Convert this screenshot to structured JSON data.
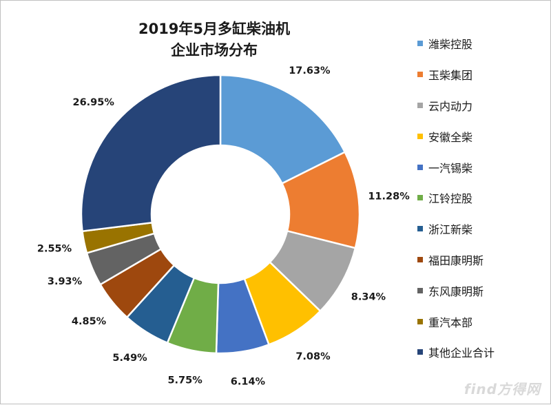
{
  "chart_data": {
    "type": "pie",
    "title": [
      "2019年5月多缸柴油机",
      "企业市场分布"
    ],
    "legend_position": "right",
    "slices": [
      {
        "name": "潍柴控股",
        "value": 17.63,
        "label": "17.63%",
        "color": "#5b9bd5"
      },
      {
        "name": "玉柴集团",
        "value": 11.28,
        "label": "11.28%",
        "color": "#ed7d31"
      },
      {
        "name": "云内动力",
        "value": 8.34,
        "label": "8.34%",
        "color": "#a5a5a5"
      },
      {
        "name": "安徽全柴",
        "value": 7.08,
        "label": "7.08%",
        "color": "#ffc000"
      },
      {
        "name": "一汽锡柴",
        "value": 6.14,
        "label": "6.14%",
        "color": "#4472c4"
      },
      {
        "name": "江铃控股",
        "value": 5.75,
        "label": "5.75%",
        "color": "#70ad47"
      },
      {
        "name": "浙江新柴",
        "value": 5.49,
        "label": "5.49%",
        "color": "#255e91"
      },
      {
        "name": "福田康明斯",
        "value": 4.85,
        "label": "4.85%",
        "color": "#9e480e"
      },
      {
        "name": "东风康明斯",
        "value": 3.93,
        "label": "3.93%",
        "color": "#636363"
      },
      {
        "name": "重汽本部",
        "value": 2.55,
        "label": "2.55%",
        "color": "#997300"
      },
      {
        "name": "其他企业合计",
        "value": 26.95,
        "label": "26.95%",
        "color": "#264478"
      }
    ]
  },
  "watermark": "find方得网"
}
